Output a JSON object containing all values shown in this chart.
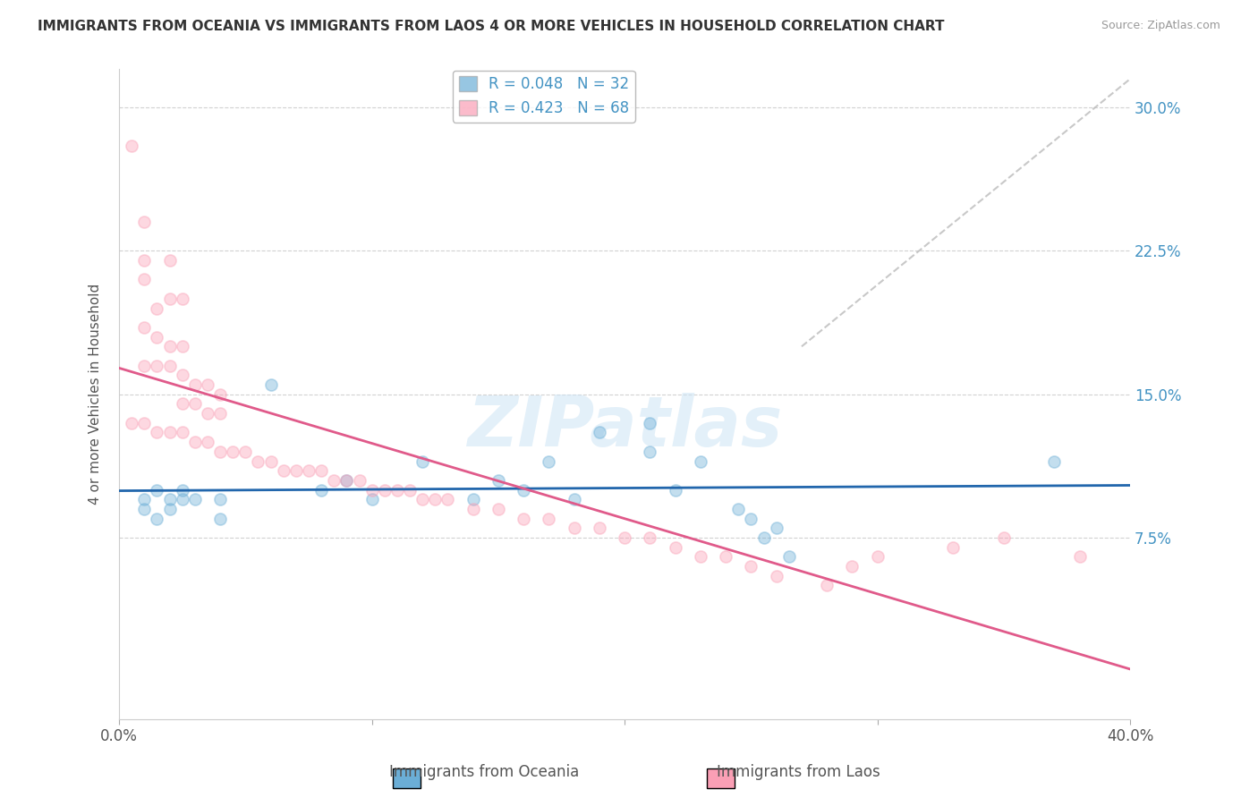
{
  "title": "IMMIGRANTS FROM OCEANIA VS IMMIGRANTS FROM LAOS 4 OR MORE VEHICLES IN HOUSEHOLD CORRELATION CHART",
  "source": "Source: ZipAtlas.com",
  "ylabel": "4 or more Vehicles in Household",
  "yticks": [
    "7.5%",
    "15.0%",
    "22.5%",
    "30.0%"
  ],
  "ytick_vals": [
    0.075,
    0.15,
    0.225,
    0.3
  ],
  "xlim": [
    0.0,
    0.4
  ],
  "ylim": [
    -0.02,
    0.32
  ],
  "legend1_label": "R = 0.048   N = 32",
  "legend2_label": "R = 0.423   N = 68",
  "color_blue": "#6baed6",
  "color_pink": "#fa9fb5",
  "line_blue": "#2166ac",
  "line_pink": "#e05a8a",
  "line_gray": "#bbbbbb",
  "watermark": "ZIPatlas",
  "oceania_points": [
    [
      0.01,
      0.095
    ],
    [
      0.01,
      0.09
    ],
    [
      0.015,
      0.085
    ],
    [
      0.02,
      0.09
    ],
    [
      0.025,
      0.1
    ],
    [
      0.02,
      0.095
    ],
    [
      0.015,
      0.1
    ],
    [
      0.03,
      0.095
    ],
    [
      0.025,
      0.095
    ],
    [
      0.04,
      0.085
    ],
    [
      0.04,
      0.095
    ],
    [
      0.06,
      0.155
    ],
    [
      0.08,
      0.1
    ],
    [
      0.09,
      0.105
    ],
    [
      0.1,
      0.095
    ],
    [
      0.12,
      0.115
    ],
    [
      0.14,
      0.095
    ],
    [
      0.15,
      0.105
    ],
    [
      0.16,
      0.1
    ],
    [
      0.17,
      0.115
    ],
    [
      0.18,
      0.095
    ],
    [
      0.19,
      0.13
    ],
    [
      0.21,
      0.135
    ],
    [
      0.21,
      0.12
    ],
    [
      0.22,
      0.1
    ],
    [
      0.23,
      0.115
    ],
    [
      0.245,
      0.09
    ],
    [
      0.25,
      0.085
    ],
    [
      0.255,
      0.075
    ],
    [
      0.26,
      0.08
    ],
    [
      0.265,
      0.065
    ],
    [
      0.37,
      0.115
    ]
  ],
  "laos_points": [
    [
      0.005,
      0.28
    ],
    [
      0.01,
      0.24
    ],
    [
      0.01,
      0.22
    ],
    [
      0.01,
      0.21
    ],
    [
      0.02,
      0.2
    ],
    [
      0.025,
      0.2
    ],
    [
      0.02,
      0.22
    ],
    [
      0.015,
      0.195
    ],
    [
      0.01,
      0.185
    ],
    [
      0.015,
      0.18
    ],
    [
      0.02,
      0.175
    ],
    [
      0.025,
      0.175
    ],
    [
      0.01,
      0.165
    ],
    [
      0.015,
      0.165
    ],
    [
      0.02,
      0.165
    ],
    [
      0.025,
      0.16
    ],
    [
      0.03,
      0.155
    ],
    [
      0.035,
      0.155
    ],
    [
      0.04,
      0.15
    ],
    [
      0.025,
      0.145
    ],
    [
      0.03,
      0.145
    ],
    [
      0.035,
      0.14
    ],
    [
      0.04,
      0.14
    ],
    [
      0.005,
      0.135
    ],
    [
      0.01,
      0.135
    ],
    [
      0.015,
      0.13
    ],
    [
      0.02,
      0.13
    ],
    [
      0.025,
      0.13
    ],
    [
      0.03,
      0.125
    ],
    [
      0.035,
      0.125
    ],
    [
      0.04,
      0.12
    ],
    [
      0.045,
      0.12
    ],
    [
      0.05,
      0.12
    ],
    [
      0.055,
      0.115
    ],
    [
      0.06,
      0.115
    ],
    [
      0.065,
      0.11
    ],
    [
      0.07,
      0.11
    ],
    [
      0.075,
      0.11
    ],
    [
      0.08,
      0.11
    ],
    [
      0.085,
      0.105
    ],
    [
      0.09,
      0.105
    ],
    [
      0.095,
      0.105
    ],
    [
      0.1,
      0.1
    ],
    [
      0.105,
      0.1
    ],
    [
      0.11,
      0.1
    ],
    [
      0.115,
      0.1
    ],
    [
      0.12,
      0.095
    ],
    [
      0.125,
      0.095
    ],
    [
      0.13,
      0.095
    ],
    [
      0.14,
      0.09
    ],
    [
      0.15,
      0.09
    ],
    [
      0.16,
      0.085
    ],
    [
      0.17,
      0.085
    ],
    [
      0.18,
      0.08
    ],
    [
      0.19,
      0.08
    ],
    [
      0.2,
      0.075
    ],
    [
      0.21,
      0.075
    ],
    [
      0.22,
      0.07
    ],
    [
      0.23,
      0.065
    ],
    [
      0.24,
      0.065
    ],
    [
      0.25,
      0.06
    ],
    [
      0.26,
      0.055
    ],
    [
      0.28,
      0.05
    ],
    [
      0.29,
      0.06
    ],
    [
      0.3,
      0.065
    ],
    [
      0.33,
      0.07
    ],
    [
      0.35,
      0.075
    ],
    [
      0.38,
      0.065
    ]
  ],
  "background_color": "#ffffff",
  "grid_color": "#cccccc"
}
